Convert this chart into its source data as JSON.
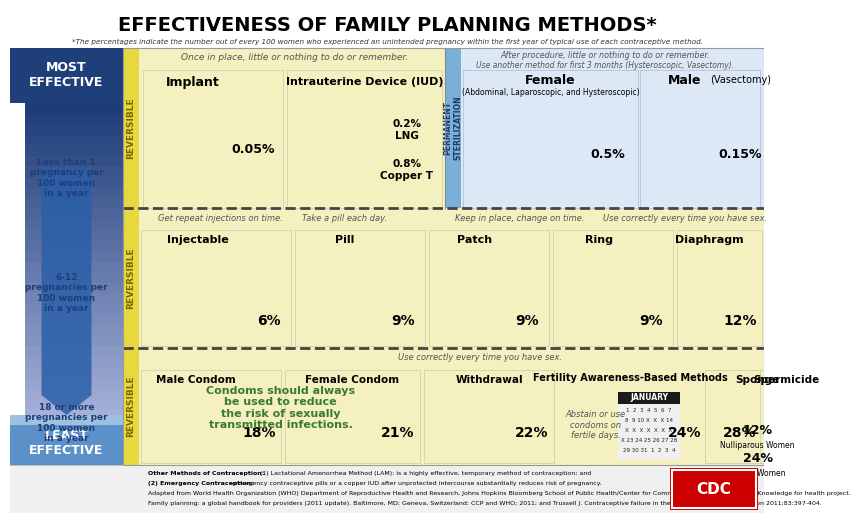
{
  "title": "EFFECTIVENESS OF FAMILY PLANNING METHODS*",
  "subtitle": "*The percentages indicate the number out of every 100 women who experienced an unintended pregnancy within the first year of typical use of each contraceptive method.",
  "bg_color": "#ffffff",
  "yellow_bg": "#f5f0c0",
  "blue_perm_bg": "#dce8f5",
  "blue_dark": "#1a3a6b",
  "yellow_band": "#e8d840",
  "green_text": "#3a7a30",
  "row1_header": "Once in place, little or nothing to do or remember.",
  "row1_perm_header1": "After procedure, little or nothing to do or remember.",
  "row1_perm_header2": "Use another method for first 3 months (Hysteroscopic, Vasectomy).",
  "row2_header_a": "Get repeat injections on time.",
  "row2_header_b": "Take a pill each day.",
  "row2_header_c": "Keep in place, change on time.",
  "row2_header_d": "Use correctly every time you have sex.",
  "row3_header": "Use correctly every time you have sex.",
  "condom_note": "Condoms should always\nbe used to reduce\nthe risk of sexually\ntransmitted infections.",
  "fertility_sub": "Abstain or use\ncondoms on\nfertile days.",
  "footer_bold1": "Other Methods of Contraception:",
  "footer_text1": " (1) Lactational Amenorrhea Method (LAM): is a highly effective, temporary method of contraception; and",
  "footer_bold2": "(2) Emergency Contraception:",
  "footer_text2": " emergency contraceptive pills or a copper IUD after unprotected intercourse substantially reduces risk of pregnancy.",
  "footer_text3": "Adapted from World Health Organization (WHO) Department of Reproductive Health and Research, Johns Hopkins Bloomberg School of Public Health/Center for Communication Programs (CCP). Knowledge for health project.",
  "footer_text4": "Family planning: a global handbook for providers (2011 update). Baltimore, MD; Geneva, Switzerland: CCP and WHO; 2011; and Trussell J. Contraceptive failure in the United States. Contraception 2011;83:397-404."
}
